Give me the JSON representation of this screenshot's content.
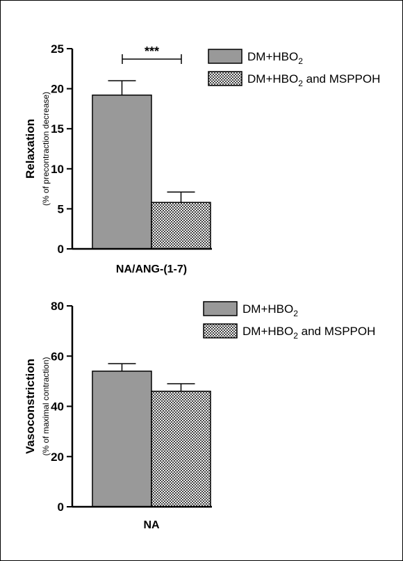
{
  "colors": {
    "bar_solid": "#999999",
    "axis": "#000000",
    "hatch_fg": "#444444",
    "hatch_bg": "#f2f2f2"
  },
  "chart_data": [
    {
      "type": "bar",
      "categories": [
        "NA/ANG-(1-7)"
      ],
      "ylabel": "Relaxation",
      "ylabel_sub": "(% of precontraction decrease)",
      "ylim": [
        0,
        25
      ],
      "yticks": [
        0,
        5,
        10,
        15,
        20,
        25
      ],
      "legend_position": "top-right",
      "series": [
        {
          "name": "DM+HBO",
          "name_sub": "2",
          "name_suffix": "",
          "values": [
            19.2
          ],
          "errors": [
            1.8
          ],
          "pattern": "solid"
        },
        {
          "name": "DM+HBO",
          "name_sub": "2",
          "name_suffix": " and MSPPOH",
          "values": [
            5.8
          ],
          "errors": [
            1.3
          ],
          "pattern": "hatched"
        }
      ],
      "annotation": "***"
    },
    {
      "type": "bar",
      "categories": [
        "NA"
      ],
      "ylabel": "Vasoconstriction",
      "ylabel_sub": "(% of maximal contraction)",
      "ylim": [
        0,
        80
      ],
      "yticks": [
        0,
        20,
        40,
        60,
        80
      ],
      "legend_position": "top-right",
      "series": [
        {
          "name": "DM+HBO",
          "name_sub": "2",
          "name_suffix": "",
          "values": [
            54
          ],
          "errors": [
            3
          ],
          "pattern": "solid"
        },
        {
          "name": "DM+HBO",
          "name_sub": "2",
          "name_suffix": " and MSPPOH",
          "values": [
            46
          ],
          "errors": [
            3
          ],
          "pattern": "hatched"
        }
      ]
    }
  ]
}
